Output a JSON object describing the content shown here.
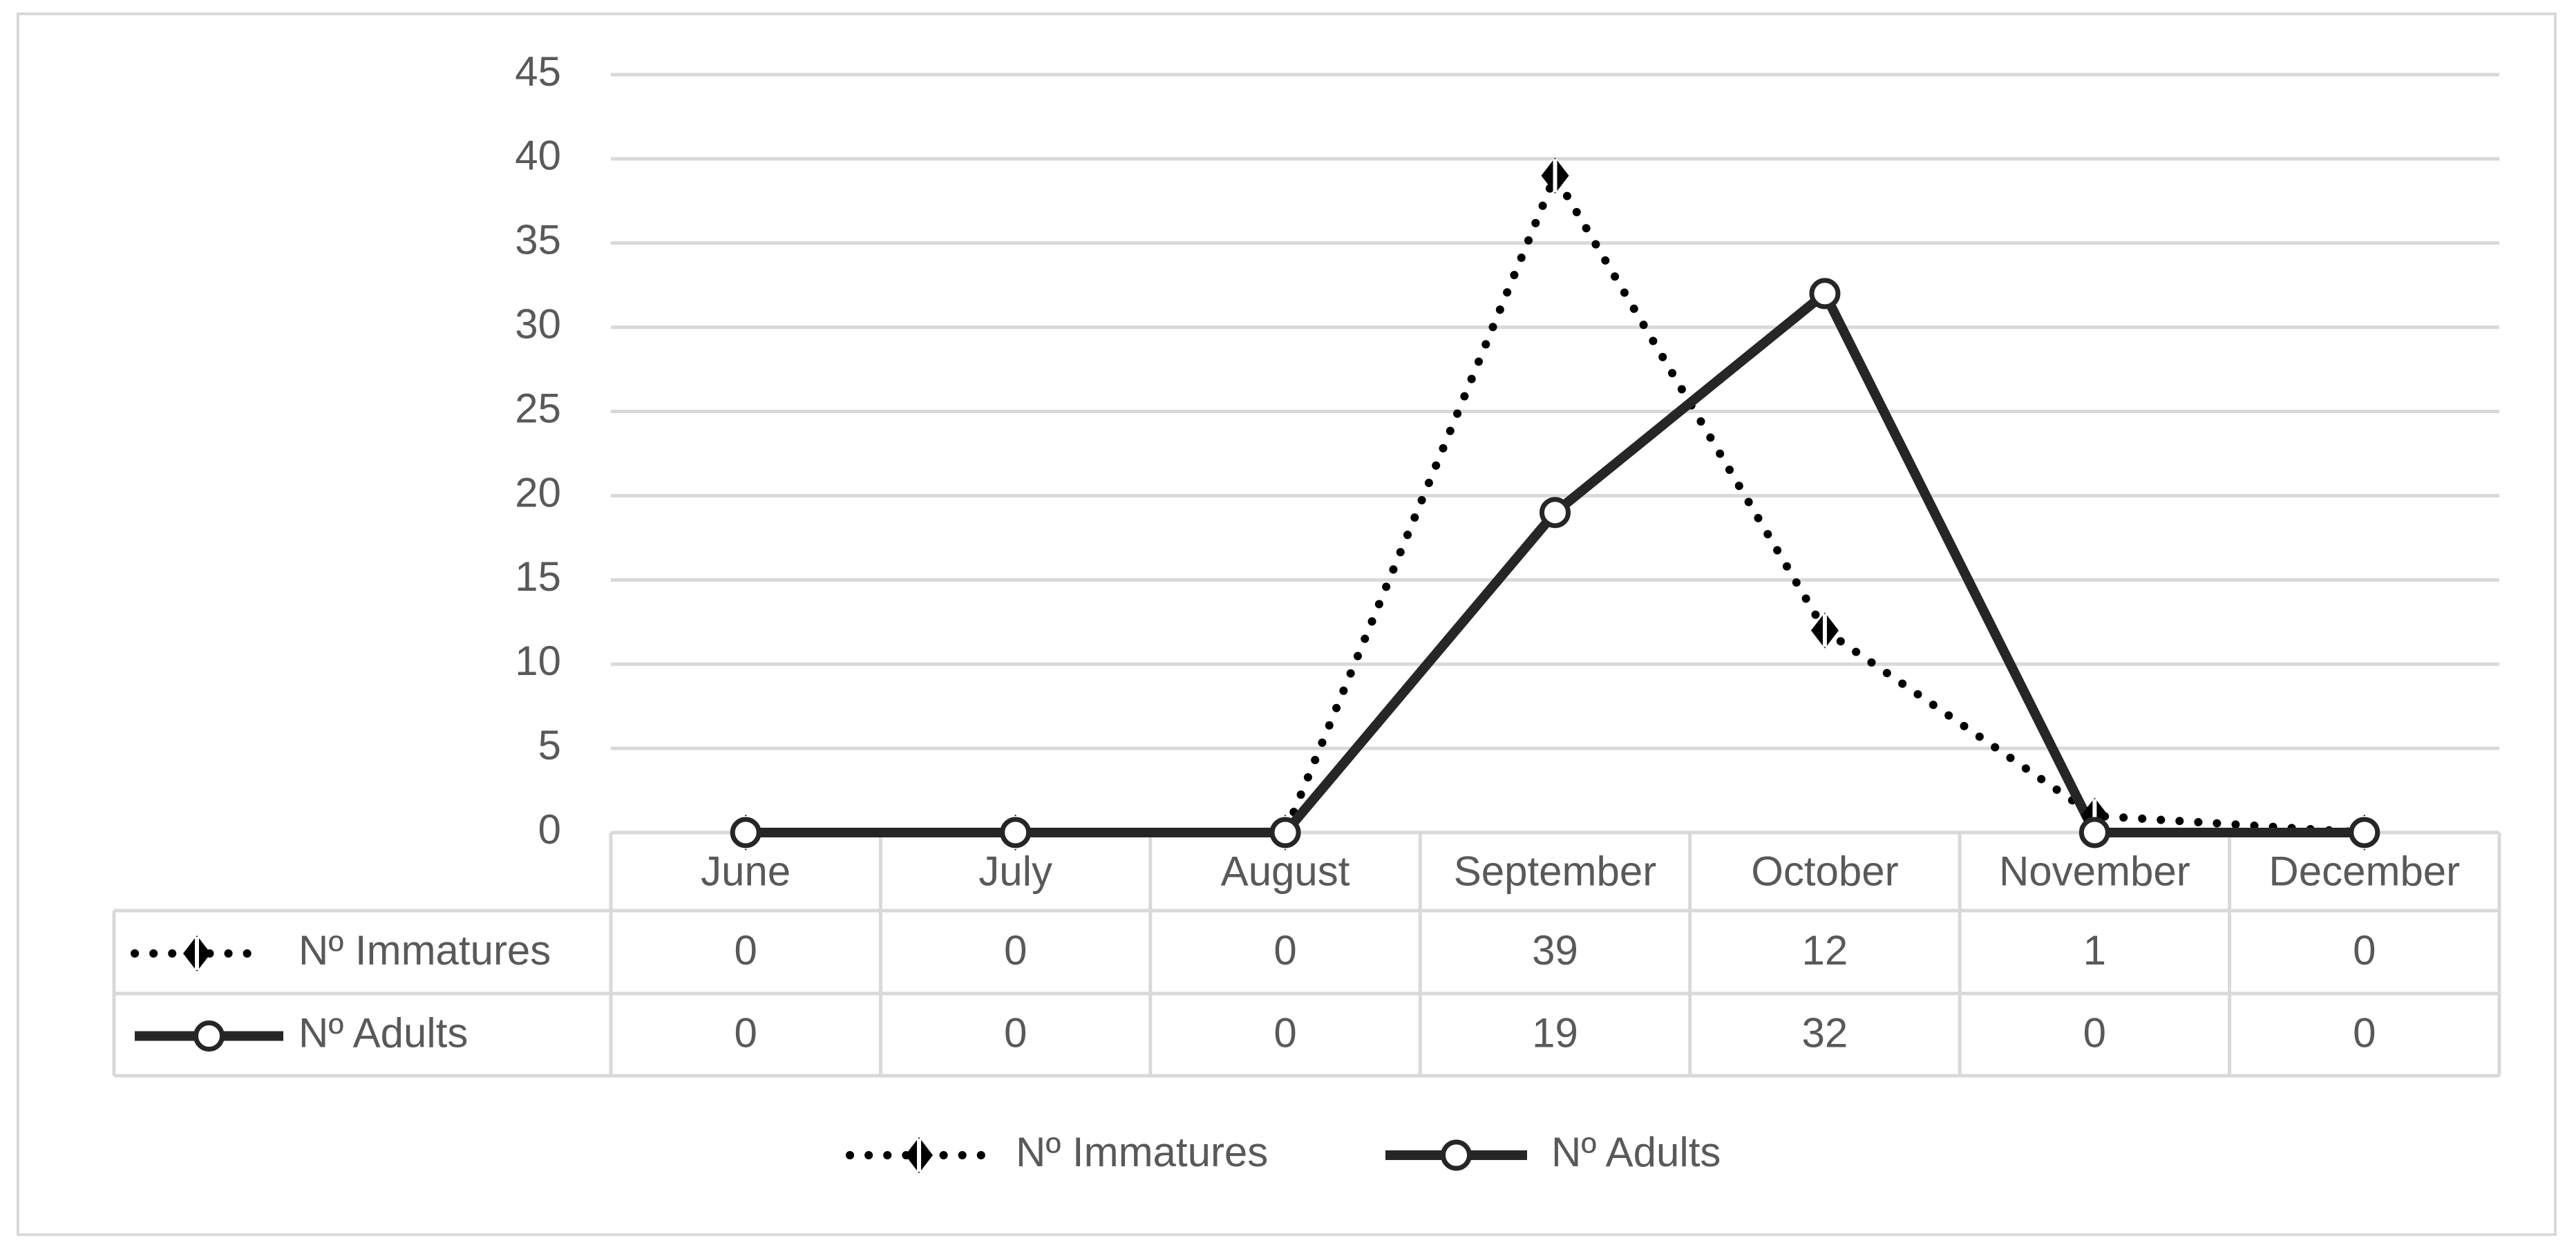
{
  "chart_data": {
    "type": "line",
    "categories": [
      "June",
      "July",
      "August",
      "September",
      "October",
      "November",
      "December"
    ],
    "series": [
      {
        "name": "Nº Immatures",
        "values": [
          0,
          0,
          0,
          39,
          12,
          1,
          0
        ],
        "line_style": "dotted",
        "marker": "diamond-filled",
        "color": "#000000"
      },
      {
        "name": "Nº Adults",
        "values": [
          0,
          0,
          0,
          19,
          32,
          0,
          0
        ],
        "line_style": "solid",
        "marker": "circle-open",
        "color": "#262626"
      }
    ],
    "title": "",
    "xlabel": "",
    "ylabel": "",
    "ylim": [
      0,
      45
    ],
    "yticks": [
      0,
      5,
      10,
      15,
      20,
      25,
      30,
      35,
      40,
      45
    ],
    "grid": true,
    "data_table": true,
    "legend": "bottom-center"
  },
  "colors": {
    "grid": "#d9d9d9",
    "text": "#595959",
    "frame": "#d9d9d9"
  }
}
